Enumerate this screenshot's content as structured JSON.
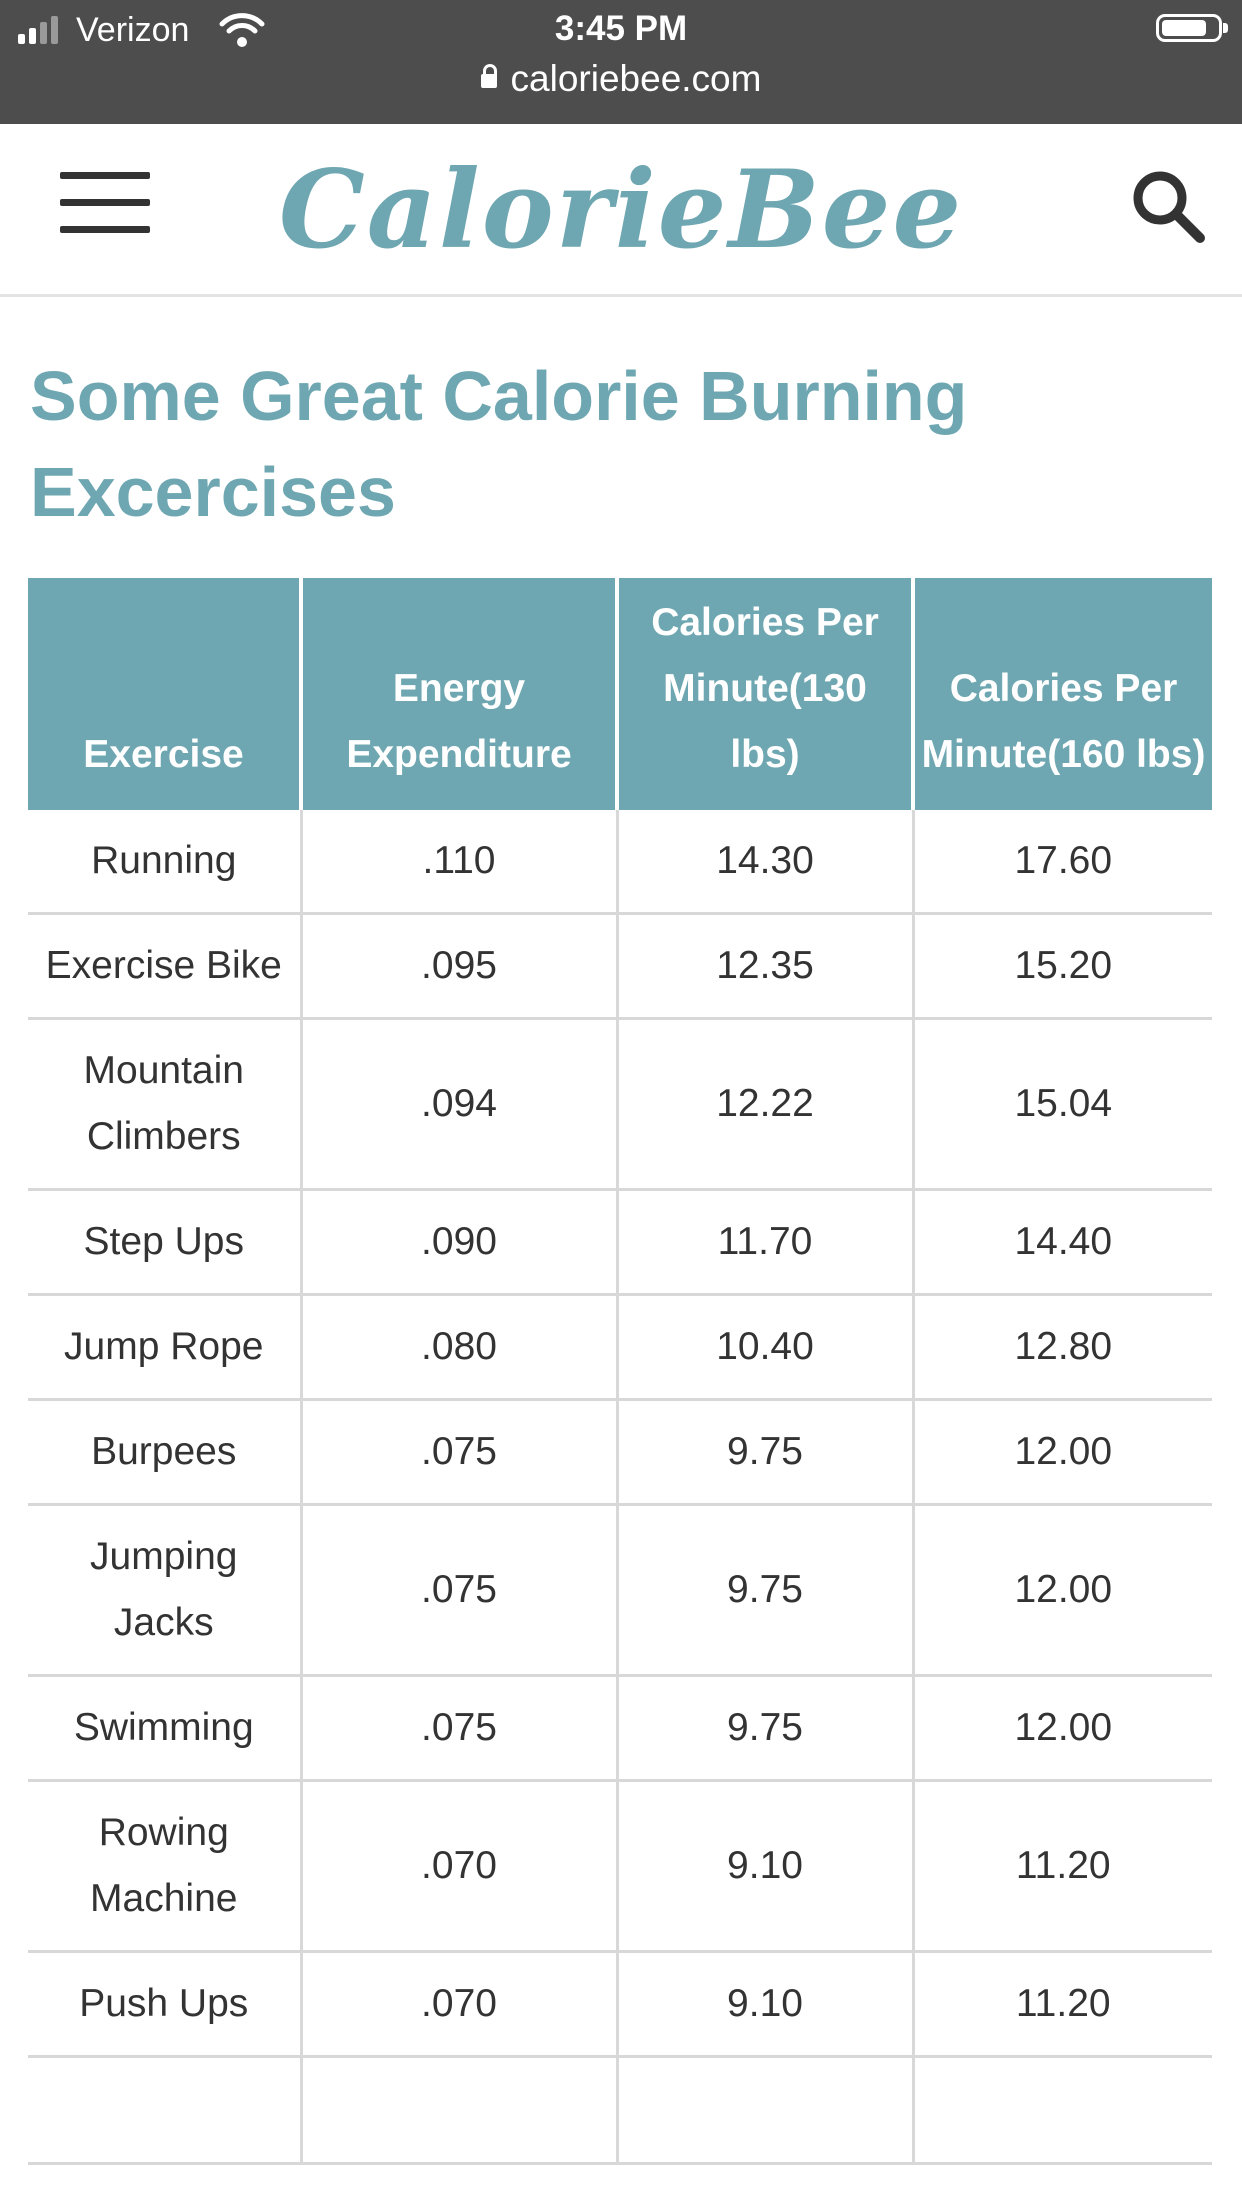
{
  "status_bar": {
    "carrier": "Verizon",
    "time": "3:45 PM",
    "url": "caloriebee.com",
    "icons": [
      "signal-icon",
      "wifi-icon",
      "lock-icon",
      "battery-icon"
    ]
  },
  "header": {
    "logo": "CalorieBee",
    "menu_icon": "hamburger-menu-icon",
    "search_icon": "search-icon"
  },
  "colors": {
    "brand": "#6ea7b1",
    "status_bar_bg": "#4d4d4d",
    "text": "#333333",
    "grid": "#d8d8d8"
  },
  "article": {
    "title": "Some Great Calorie Burning Excercises"
  },
  "table": {
    "headers": [
      "Exercise",
      "Energy Expenditure",
      "Calories Per Minute(130 lbs)",
      "Calories Per Minute(160 lbs)"
    ],
    "rows": [
      [
        "Running",
        ".110",
        "14.30",
        "17.60"
      ],
      [
        "Exercise Bike",
        ".095",
        "12.35",
        "15.20"
      ],
      [
        "Mountain Climbers",
        ".094",
        "12.22",
        "15.04"
      ],
      [
        "Step Ups",
        ".090",
        "11.70",
        "14.40"
      ],
      [
        "Jump Rope",
        ".080",
        "10.40",
        "12.80"
      ],
      [
        "Burpees",
        ".075",
        "9.75",
        "12.00"
      ],
      [
        "Jumping Jacks",
        ".075",
        "9.75",
        "12.00"
      ],
      [
        "Swimming",
        ".075",
        "9.75",
        "12.00"
      ],
      [
        "Rowing Machine",
        ".070",
        "9.10",
        "11.20"
      ],
      [
        "Push Ups",
        ".070",
        "9.10",
        "11.20"
      ]
    ]
  }
}
